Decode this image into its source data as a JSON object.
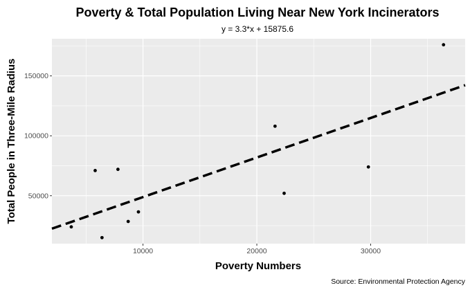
{
  "chart_data": {
    "type": "scatter",
    "title": "Poverty & Total Population Living Near New York Incinerators",
    "subtitle": "y = 3.3*x + 15875.6",
    "xlabel": "Poverty Numbers",
    "ylabel": "Total People in Three-Mile Radius",
    "caption": "Source: Environmental Protection Agency",
    "xlim": [
      2000,
      38300
    ],
    "ylim": [
      10000,
      181000
    ],
    "x_ticks": [
      10000,
      20000,
      30000
    ],
    "x_minor": [
      5000,
      15000,
      25000,
      35000
    ],
    "y_ticks": [
      50000,
      100000,
      150000
    ],
    "y_minor": [
      25000,
      75000,
      125000,
      175000
    ],
    "grid": true,
    "legend": "none",
    "points": [
      {
        "x": 3700,
        "y": 24000
      },
      {
        "x": 5800,
        "y": 71000
      },
      {
        "x": 6400,
        "y": 15000
      },
      {
        "x": 7800,
        "y": 72000
      },
      {
        "x": 8700,
        "y": 28500
      },
      {
        "x": 9600,
        "y": 36500
      },
      {
        "x": 21600,
        "y": 108000
      },
      {
        "x": 22400,
        "y": 52000
      },
      {
        "x": 29800,
        "y": 74000
      },
      {
        "x": 36400,
        "y": 176000
      }
    ],
    "trendline": {
      "slope": 3.3,
      "intercept": 15875.6,
      "style": "dashed"
    },
    "colors": {
      "panel": "#ebebeb",
      "grid": "#ffffff",
      "point": "#000000",
      "trend": "#000000"
    }
  }
}
